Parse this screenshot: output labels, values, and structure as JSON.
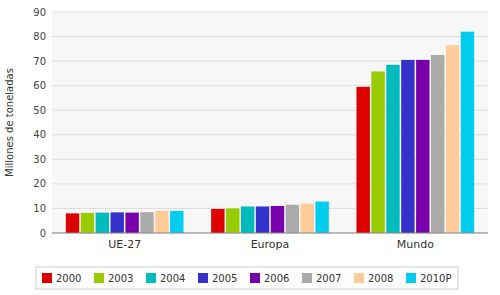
{
  "chart_data": {
    "type": "bar",
    "categories": [
      "UE-27",
      "Europa",
      "Mundo"
    ],
    "series": [
      {
        "name": "2000",
        "color": "#dd0000",
        "values": [
          8.0,
          9.8,
          59.5
        ]
      },
      {
        "name": "2003",
        "color": "#99cc00",
        "values": [
          8.2,
          10.0,
          65.8
        ]
      },
      {
        "name": "2004",
        "color": "#00bbbb",
        "values": [
          8.3,
          10.8,
          68.5
        ]
      },
      {
        "name": "2005",
        "color": "#3333cc",
        "values": [
          8.4,
          10.8,
          70.5
        ]
      },
      {
        "name": "2006",
        "color": "#7700aa",
        "values": [
          8.3,
          11.0,
          70.5
        ]
      },
      {
        "name": "2007",
        "color": "#aaaaaa",
        "values": [
          8.5,
          11.5,
          72.5
        ]
      },
      {
        "name": "2008",
        "color": "#ffcc99",
        "values": [
          9.0,
          12.0,
          76.5
        ]
      },
      {
        "name": "2010P",
        "color": "#00ccee",
        "values": [
          9.0,
          12.8,
          82.0
        ]
      }
    ],
    "ylabel": "Millones de toneladas",
    "ylim": [
      0,
      90
    ],
    "yticks": [
      0,
      10,
      20,
      30,
      40,
      50,
      60,
      70,
      80,
      90
    ],
    "grid": true,
    "legend": "bottom"
  }
}
